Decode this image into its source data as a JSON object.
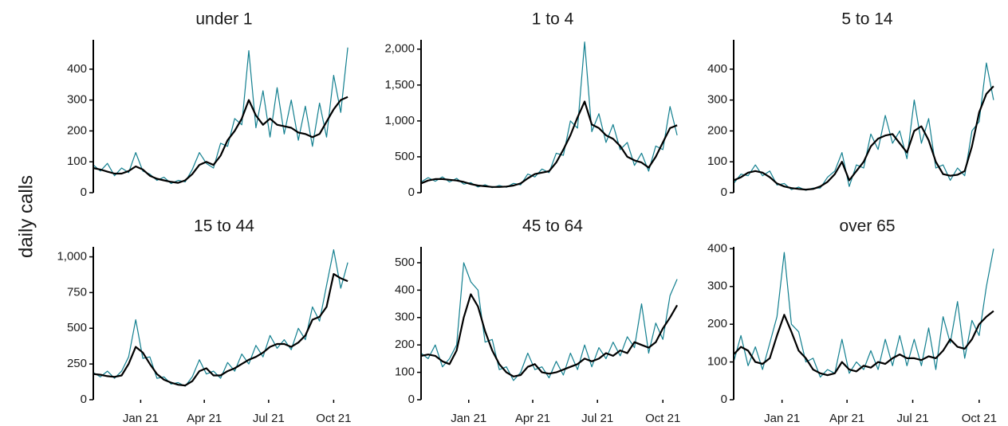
{
  "ylabel": "daily calls",
  "chart_data": [
    {
      "type": "line",
      "title": "under 1",
      "x": [
        0,
        10,
        20,
        30,
        40,
        50,
        60,
        70,
        80,
        90,
        100,
        110,
        120,
        130,
        140,
        150,
        160,
        170,
        180,
        190,
        200,
        210,
        220,
        230,
        240,
        250,
        260,
        270,
        280,
        290,
        300,
        310,
        320,
        330,
        340,
        350,
        360
      ],
      "xlim": [
        0,
        370
      ],
      "ylim": [
        0,
        495
      ],
      "yticks": [
        0,
        100,
        200,
        300,
        400
      ],
      "series": [
        {
          "color": "#127f8f",
          "values": [
            90,
            70,
            95,
            55,
            80,
            65,
            130,
            70,
            60,
            40,
            50,
            30,
            40,
            35,
            75,
            130,
            95,
            80,
            160,
            150,
            240,
            220,
            460,
            210,
            330,
            180,
            340,
            190,
            300,
            170,
            280,
            150,
            290,
            180,
            380,
            260,
            470
          ]
        },
        {
          "color": "#000000",
          "values": [
            80,
            75,
            68,
            62,
            62,
            70,
            85,
            75,
            55,
            45,
            40,
            35,
            32,
            40,
            60,
            90,
            100,
            90,
            120,
            170,
            200,
            240,
            300,
            250,
            220,
            240,
            220,
            215,
            210,
            195,
            190,
            180,
            190,
            230,
            270,
            300,
            310
          ]
        }
      ]
    },
    {
      "type": "line",
      "title": "1 to 4",
      "x": [
        0,
        10,
        20,
        30,
        40,
        50,
        60,
        70,
        80,
        90,
        100,
        110,
        120,
        130,
        140,
        150,
        160,
        170,
        180,
        190,
        200,
        210,
        220,
        230,
        240,
        250,
        260,
        270,
        280,
        290,
        300,
        310,
        320,
        330,
        340,
        350,
        360
      ],
      "xlim": [
        0,
        370
      ],
      "ylim": [
        0,
        2130
      ],
      "yticks": [
        0,
        500,
        {
          "value": 1000,
          "label": "1,000"
        },
        {
          "value": 1500,
          "label": "1,500"
        },
        {
          "value": 2000,
          "label": "2,000"
        }
      ],
      "series": [
        {
          "color": "#127f8f",
          "values": [
            150,
            210,
            160,
            220,
            150,
            200,
            120,
            140,
            80,
            110,
            70,
            100,
            75,
            130,
            110,
            260,
            220,
            330,
            280,
            550,
            520,
            1000,
            900,
            2100,
            850,
            1100,
            700,
            950,
            600,
            700,
            380,
            550,
            300,
            650,
            600,
            1200,
            800
          ]
        },
        {
          "color": "#000000",
          "values": [
            130,
            170,
            190,
            190,
            180,
            170,
            150,
            120,
            100,
            90,
            80,
            80,
            85,
            100,
            130,
            200,
            260,
            280,
            300,
            420,
            600,
            800,
            1050,
            1270,
            950,
            900,
            800,
            750,
            650,
            500,
            450,
            420,
            350,
            500,
            700,
            900,
            940
          ]
        }
      ]
    },
    {
      "type": "line",
      "title": "5 to 14",
      "x": [
        0,
        10,
        20,
        30,
        40,
        50,
        60,
        70,
        80,
        90,
        100,
        110,
        120,
        130,
        140,
        150,
        160,
        170,
        180,
        190,
        200,
        210,
        220,
        230,
        240,
        250,
        260,
        270,
        280,
        290,
        300,
        310,
        320,
        330,
        340,
        350,
        360
      ],
      "xlim": [
        0,
        370
      ],
      "ylim": [
        0,
        495
      ],
      "yticks": [
        0,
        100,
        200,
        300,
        400
      ],
      "series": [
        {
          "color": "#127f8f",
          "values": [
            30,
            60,
            55,
            90,
            55,
            70,
            25,
            30,
            10,
            18,
            8,
            15,
            15,
            50,
            70,
            130,
            20,
            90,
            80,
            190,
            140,
            250,
            160,
            200,
            110,
            300,
            160,
            240,
            80,
            90,
            40,
            80,
            55,
            200,
            230,
            420,
            300
          ]
        },
        {
          "color": "#000000",
          "values": [
            40,
            50,
            65,
            70,
            65,
            50,
            30,
            20,
            15,
            12,
            10,
            12,
            20,
            35,
            60,
            100,
            40,
            70,
            100,
            150,
            175,
            185,
            190,
            160,
            130,
            200,
            215,
            170,
            100,
            60,
            55,
            58,
            70,
            150,
            260,
            320,
            345
          ]
        }
      ]
    },
    {
      "type": "line",
      "title": "15 to 44",
      "x": [
        0,
        10,
        20,
        30,
        40,
        50,
        60,
        70,
        80,
        90,
        100,
        110,
        120,
        130,
        140,
        150,
        160,
        170,
        180,
        190,
        200,
        210,
        220,
        230,
        240,
        250,
        260,
        270,
        280,
        290,
        300,
        310,
        320,
        330,
        340,
        350,
        360
      ],
      "xlim": [
        0,
        370
      ],
      "ylim": [
        0,
        1070
      ],
      "yticks": [
        0,
        250,
        500,
        750,
        {
          "value": 1000,
          "label": "1,000"
        }
      ],
      "xticks": [
        {
          "value": 67,
          "label": "Jan 21"
        },
        {
          "value": 157,
          "label": "Apr 21"
        },
        {
          "value": 248,
          "label": "Jul 21"
        },
        {
          "value": 340,
          "label": "Oct 21"
        }
      ],
      "series": [
        {
          "color": "#127f8f",
          "values": [
            190,
            160,
            200,
            150,
            200,
            300,
            560,
            290,
            300,
            150,
            160,
            110,
            120,
            95,
            160,
            280,
            180,
            200,
            150,
            260,
            200,
            320,
            250,
            380,
            300,
            450,
            360,
            420,
            350,
            500,
            420,
            650,
            550,
            800,
            1050,
            780,
            960
          ]
        },
        {
          "color": "#000000",
          "values": [
            180,
            175,
            165,
            160,
            170,
            250,
            370,
            330,
            250,
            180,
            140,
            120,
            105,
            100,
            130,
            200,
            220,
            170,
            170,
            200,
            220,
            250,
            280,
            300,
            330,
            370,
            390,
            390,
            370,
            400,
            450,
            560,
            580,
            650,
            880,
            850,
            830
          ]
        }
      ]
    },
    {
      "type": "line",
      "title": "45 to 64",
      "x": [
        0,
        10,
        20,
        30,
        40,
        50,
        60,
        70,
        80,
        90,
        100,
        110,
        120,
        130,
        140,
        150,
        160,
        170,
        180,
        190,
        200,
        210,
        220,
        230,
        240,
        250,
        260,
        270,
        280,
        290,
        300,
        310,
        320,
        330,
        340,
        350,
        360
      ],
      "xlim": [
        0,
        370
      ],
      "ylim": [
        0,
        558
      ],
      "yticks": [
        0,
        100,
        200,
        300,
        400,
        500
      ],
      "xticks": [
        {
          "value": 67,
          "label": "Jan 21"
        },
        {
          "value": 157,
          "label": "Apr 21"
        },
        {
          "value": 248,
          "label": "Jul 21"
        },
        {
          "value": 340,
          "label": "Oct 21"
        }
      ],
      "series": [
        {
          "color": "#127f8f",
          "values": [
            170,
            150,
            200,
            120,
            150,
            200,
            500,
            430,
            400,
            210,
            220,
            110,
            120,
            70,
            100,
            170,
            110,
            120,
            80,
            140,
            90,
            170,
            110,
            200,
            120,
            190,
            150,
            210,
            160,
            230,
            190,
            350,
            170,
            280,
            220,
            380,
            440
          ]
        },
        {
          "color": "#000000",
          "values": [
            160,
            165,
            160,
            140,
            130,
            180,
            300,
            385,
            340,
            250,
            180,
            130,
            100,
            85,
            90,
            120,
            130,
            100,
            95,
            100,
            110,
            120,
            130,
            150,
            140,
            150,
            170,
            160,
            180,
            170,
            210,
            200,
            190,
            210,
            260,
            300,
            345
          ]
        }
      ]
    },
    {
      "type": "line",
      "title": "over 65",
      "x": [
        0,
        10,
        20,
        30,
        40,
        50,
        60,
        70,
        80,
        90,
        100,
        110,
        120,
        130,
        140,
        150,
        160,
        170,
        180,
        190,
        200,
        210,
        220,
        230,
        240,
        250,
        260,
        270,
        280,
        290,
        300,
        310,
        320,
        330,
        340,
        350,
        360
      ],
      "xlim": [
        0,
        370
      ],
      "ylim": [
        0,
        405
      ],
      "yticks": [
        0,
        100,
        200,
        300,
        400
      ],
      "xticks": [
        {
          "value": 67,
          "label": "Jan 21"
        },
        {
          "value": 157,
          "label": "Apr 21"
        },
        {
          "value": 248,
          "label": "Jul 21"
        },
        {
          "value": 340,
          "label": "Oct 21"
        }
      ],
      "series": [
        {
          "color": "#127f8f",
          "values": [
            100,
            170,
            90,
            140,
            80,
            150,
            220,
            390,
            200,
            180,
            100,
            110,
            60,
            80,
            70,
            160,
            70,
            100,
            80,
            130,
            80,
            160,
            90,
            170,
            90,
            160,
            90,
            190,
            80,
            220,
            150,
            260,
            110,
            210,
            170,
            300,
            400
          ]
        },
        {
          "color": "#000000",
          "values": [
            120,
            140,
            130,
            100,
            95,
            110,
            170,
            225,
            180,
            130,
            110,
            80,
            70,
            65,
            70,
            100,
            80,
            75,
            90,
            85,
            100,
            95,
            110,
            120,
            110,
            110,
            105,
            115,
            110,
            130,
            160,
            140,
            135,
            160,
            200,
            220,
            235
          ]
        }
      ]
    }
  ]
}
